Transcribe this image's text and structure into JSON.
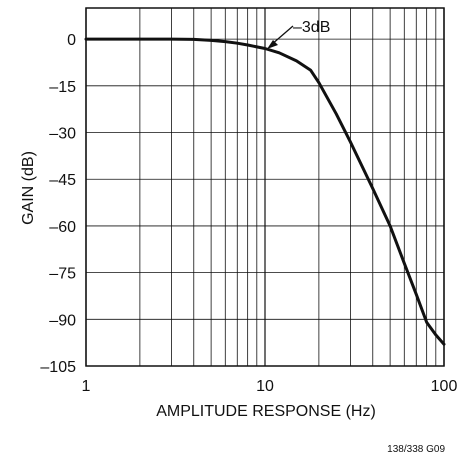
{
  "chart_data": {
    "type": "line",
    "xscale": "log",
    "xlim": [
      1,
      100
    ],
    "ylim": [
      -105,
      10
    ],
    "x_ticks": [
      1,
      10,
      100
    ],
    "x_tick_labels": [
      "1",
      "10",
      "100"
    ],
    "y_ticks": [
      0,
      -15,
      -30,
      -45,
      -60,
      -75,
      -90,
      -105
    ],
    "y_tick_labels": [
      "0",
      "–15",
      "–30",
      "–45",
      "–60",
      "–75",
      "–90",
      "–105"
    ],
    "xlabel": "AMPLITUDE RESPONSE (Hz)",
    "ylabel": "GAIN (dB)",
    "grid": true,
    "series": [
      {
        "x": [
          1,
          2,
          3,
          4,
          5,
          6,
          7,
          8,
          9,
          10,
          12,
          15,
          18,
          20,
          25,
          30,
          40,
          50,
          60,
          70,
          80,
          90,
          100
        ],
        "y": [
          0,
          0,
          0,
          -0.1,
          -0.4,
          -0.8,
          -1.3,
          -1.9,
          -2.5,
          -3,
          -4.4,
          -7,
          -10,
          -14,
          -24,
          -33,
          -48,
          -60,
          -72,
          -82,
          -91,
          -95,
          -98
        ]
      }
    ],
    "annotations": [
      {
        "text": "–3dB",
        "x": 10,
        "y": -3
      }
    ],
    "figure_code": "138/338 G09"
  }
}
